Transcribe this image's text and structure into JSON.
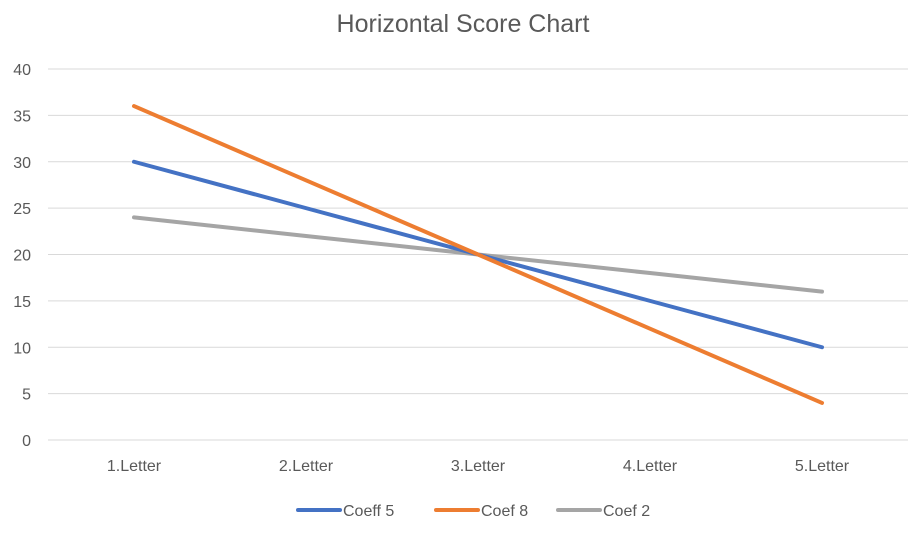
{
  "chart_data": {
    "type": "line",
    "title": "Horizontal Score Chart",
    "xlabel": "",
    "ylabel": "",
    "categories": [
      "1.Letter",
      "2.Letter",
      "3.Letter",
      "4.Letter",
      "5.Letter"
    ],
    "ylim": [
      0,
      40
    ],
    "yticks": [
      0,
      5,
      10,
      15,
      20,
      25,
      30,
      35,
      40
    ],
    "grid": true,
    "legend_position": "bottom",
    "series": [
      {
        "name": "Coeff 5",
        "color": "#4472C4",
        "values": [
          30,
          25,
          20,
          15,
          10
        ]
      },
      {
        "name": "Coef 8",
        "color": "#ED7D31",
        "values": [
          36,
          28,
          20,
          12,
          4
        ]
      },
      {
        "name": "Coef 2",
        "color": "#A5A5A5",
        "values": [
          24,
          22,
          20,
          18,
          16
        ]
      }
    ]
  }
}
